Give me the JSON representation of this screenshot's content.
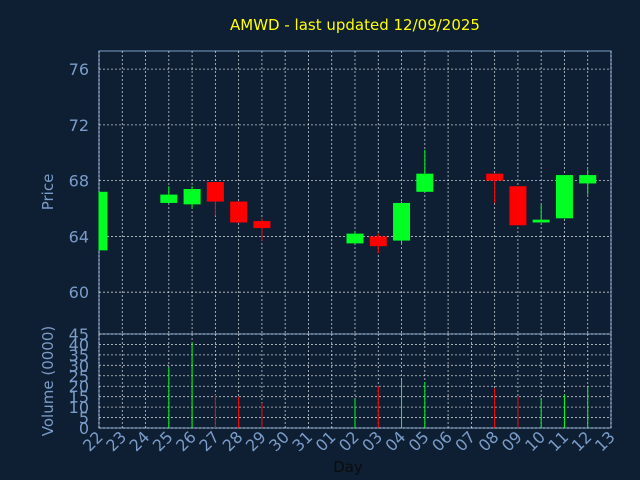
{
  "chart_data": {
    "type": "candlestick",
    "title": "AMWD - last updated 12/09/2025",
    "ylabel": "Price",
    "volume_ylabel": "Volume (0000)",
    "xlabel": "Day",
    "ylim": [
      57.0,
      77.3
    ],
    "volume_ylim": [
      0,
      45
    ],
    "yticks": [
      "76",
      "72",
      "68",
      "64",
      "60"
    ],
    "volume_yticks": [
      "45",
      "40",
      "35",
      "30",
      "25",
      "20",
      "15",
      "10",
      "5",
      "0"
    ],
    "grid": true,
    "categories": [
      "22",
      "23",
      "24",
      "25",
      "26",
      "27",
      "28",
      "29",
      "30",
      "31",
      "01",
      "02",
      "03",
      "04",
      "05",
      "06",
      "07",
      "08",
      "09",
      "10",
      "11",
      "12",
      "13"
    ],
    "candles": [
      {
        "day": "22",
        "open": 63.0,
        "close": 67.2,
        "high": 67.2,
        "low": 63.0,
        "volume": 0
      },
      {
        "day": "25",
        "open": 66.4,
        "close": 67.0,
        "high": 67.6,
        "low": 66.4,
        "volume": 29
      },
      {
        "day": "26",
        "open": 66.3,
        "close": 67.4,
        "high": 67.6,
        "low": 66.0,
        "volume": 41
      },
      {
        "day": "27",
        "open": 67.9,
        "close": 66.5,
        "high": 67.9,
        "low": 65.5,
        "volume": 16
      },
      {
        "day": "28",
        "open": 66.5,
        "close": 65.0,
        "high": 66.5,
        "low": 65.0,
        "volume": 15
      },
      {
        "day": "29",
        "open": 65.1,
        "close": 64.6,
        "high": 65.3,
        "low": 63.7,
        "volume": 12
      },
      {
        "day": "02",
        "open": 63.5,
        "close": 64.2,
        "high": 64.4,
        "low": 63.5,
        "volume": 14
      },
      {
        "day": "03",
        "open": 64.0,
        "close": 63.3,
        "high": 64.2,
        "low": 62.8,
        "volume": 20
      },
      {
        "day": "04",
        "open": 63.7,
        "close": 66.4,
        "high": 66.5,
        "low": 63.4,
        "volume": 23
      },
      {
        "day": "05",
        "open": 67.2,
        "close": 68.5,
        "high": 70.2,
        "low": 67.2,
        "volume": 22
      },
      {
        "day": "08",
        "open": 68.5,
        "close": 68.0,
        "high": 68.5,
        "low": 66.4,
        "volume": 19
      },
      {
        "day": "09",
        "open": 67.6,
        "close": 64.8,
        "high": 67.6,
        "low": 64.8,
        "volume": 15
      },
      {
        "day": "10",
        "open": 65.0,
        "close": 65.2,
        "high": 66.3,
        "low": 65.0,
        "volume": 14
      },
      {
        "day": "11",
        "open": 65.3,
        "close": 68.4,
        "high": 68.4,
        "low": 65.3,
        "volume": 16
      },
      {
        "day": "12",
        "open": 67.8,
        "close": 68.4,
        "high": 68.8,
        "low": 67.0,
        "volume": 20
      }
    ],
    "colors": {
      "up": "#00ff22",
      "down": "#ff0000",
      "background": "#0f1f33",
      "title": "#ffff00",
      "text": "#7a9cc8"
    }
  }
}
